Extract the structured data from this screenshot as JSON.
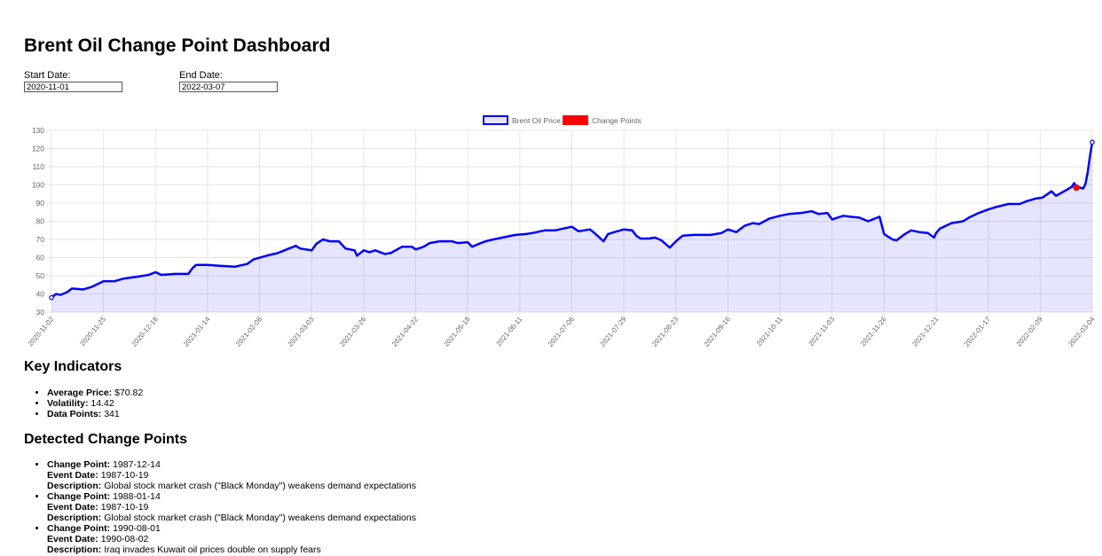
{
  "page": {
    "title": "Brent Oil Change Point Dashboard"
  },
  "filters": {
    "start_label": "Start Date:",
    "start_value": "2020-11-01",
    "end_label": "End Date:",
    "end_value": "2022-03-07"
  },
  "chart_data": {
    "type": "line",
    "title": "",
    "xlabel": "",
    "ylabel": "",
    "ylim": [
      30,
      130
    ],
    "yticks": [
      30,
      40,
      50,
      60,
      70,
      80,
      90,
      100,
      110,
      120,
      130
    ],
    "xticks": [
      "2020-11-02",
      "2020-11-25",
      "2020-12-18",
      "2021-01-14",
      "2021-02-08",
      "2021-03-03",
      "2021-03-26",
      "2021-04-22",
      "2021-05-18",
      "2021-06-11",
      "2021-07-06",
      "2021-07-29",
      "2021-08-23",
      "2021-09-16",
      "2021-10-11",
      "2021-11-03",
      "2021-11-26",
      "2021-12-21",
      "2022-01-17",
      "2022-02-09",
      "2022-03-04"
    ],
    "grid": true,
    "legend_position": "top-center",
    "series": [
      {
        "name": "Brent Oil Price",
        "color": "#0000ff",
        "fill": "rgba(0,0,255,0.1)",
        "points": [
          [
            "2020-11-02",
            38
          ],
          [
            "2020-11-04",
            40
          ],
          [
            "2020-11-06",
            39.5
          ],
          [
            "2020-11-09",
            41
          ],
          [
            "2020-11-11",
            43
          ],
          [
            "2020-11-16",
            42.5
          ],
          [
            "2020-11-20",
            44
          ],
          [
            "2020-11-25",
            47
          ],
          [
            "2020-11-30",
            47
          ],
          [
            "2020-12-04",
            48.5
          ],
          [
            "2020-12-10",
            49.5
          ],
          [
            "2020-12-15",
            50.5
          ],
          [
            "2020-12-18",
            52
          ],
          [
            "2020-12-21",
            50.5
          ],
          [
            "2020-12-28",
            51
          ],
          [
            "2021-01-04",
            51
          ],
          [
            "2021-01-06",
            54
          ],
          [
            "2021-01-08",
            56
          ],
          [
            "2021-01-14",
            56
          ],
          [
            "2021-01-20",
            55.5
          ],
          [
            "2021-01-27",
            55
          ],
          [
            "2021-02-02",
            56.5
          ],
          [
            "2021-02-05",
            59
          ],
          [
            "2021-02-11",
            61
          ],
          [
            "2021-02-16",
            62.5
          ],
          [
            "2021-02-19",
            64
          ],
          [
            "2021-02-24",
            66.5
          ],
          [
            "2021-02-26",
            65
          ],
          [
            "2021-03-03",
            64
          ],
          [
            "2021-03-05",
            67.5
          ],
          [
            "2021-03-08",
            70
          ],
          [
            "2021-03-11",
            69
          ],
          [
            "2021-03-15",
            69
          ],
          [
            "2021-03-18",
            65
          ],
          [
            "2021-03-22",
            64
          ],
          [
            "2021-03-23",
            61
          ],
          [
            "2021-03-26",
            64
          ],
          [
            "2021-03-29",
            63
          ],
          [
            "2021-04-01",
            64
          ],
          [
            "2021-04-06",
            62
          ],
          [
            "2021-04-09",
            62.5
          ],
          [
            "2021-04-15",
            66
          ],
          [
            "2021-04-20",
            66
          ],
          [
            "2021-04-22",
            64.5
          ],
          [
            "2021-04-26",
            66
          ],
          [
            "2021-04-29",
            68
          ],
          [
            "2021-05-04",
            69
          ],
          [
            "2021-05-10",
            69
          ],
          [
            "2021-05-13",
            68
          ],
          [
            "2021-05-18",
            68.5
          ],
          [
            "2021-05-20",
            66
          ],
          [
            "2021-05-25",
            68.5
          ],
          [
            "2021-05-28",
            69.5
          ],
          [
            "2021-06-03",
            71
          ],
          [
            "2021-06-09",
            72.5
          ],
          [
            "2021-06-14",
            73
          ],
          [
            "2021-06-17",
            73.5
          ],
          [
            "2021-06-23",
            75
          ],
          [
            "2021-06-28",
            75
          ],
          [
            "2021-07-02",
            76
          ],
          [
            "2021-07-06",
            77
          ],
          [
            "2021-07-09",
            74.5
          ],
          [
            "2021-07-14",
            75.5
          ],
          [
            "2021-07-16",
            73.5
          ],
          [
            "2021-07-20",
            69
          ],
          [
            "2021-07-22",
            73
          ],
          [
            "2021-07-26",
            74.5
          ],
          [
            "2021-07-29",
            75.5
          ],
          [
            "2021-08-02",
            75
          ],
          [
            "2021-08-04",
            72
          ],
          [
            "2021-08-06",
            70.5
          ],
          [
            "2021-08-10",
            70.5
          ],
          [
            "2021-08-13",
            71
          ],
          [
            "2021-08-16",
            69.5
          ],
          [
            "2021-08-18",
            67.5
          ],
          [
            "2021-08-20",
            65.5
          ],
          [
            "2021-08-23",
            69
          ],
          [
            "2021-08-26",
            72
          ],
          [
            "2021-08-31",
            72.5
          ],
          [
            "2021-09-03",
            72.5
          ],
          [
            "2021-09-08",
            72.5
          ],
          [
            "2021-09-13",
            73.5
          ],
          [
            "2021-09-16",
            75.5
          ],
          [
            "2021-09-20",
            74
          ],
          [
            "2021-09-24",
            77.5
          ],
          [
            "2021-09-28",
            79
          ],
          [
            "2021-10-01",
            78.5
          ],
          [
            "2021-10-06",
            81.5
          ],
          [
            "2021-10-11",
            83
          ],
          [
            "2021-10-15",
            84
          ],
          [
            "2021-10-20",
            84.5
          ],
          [
            "2021-10-25",
            85.5
          ],
          [
            "2021-10-28",
            84
          ],
          [
            "2021-11-01",
            84.5
          ],
          [
            "2021-11-03",
            81
          ],
          [
            "2021-11-08",
            83
          ],
          [
            "2021-11-11",
            82.5
          ],
          [
            "2021-11-15",
            82
          ],
          [
            "2021-11-19",
            80
          ],
          [
            "2021-11-24",
            82.5
          ],
          [
            "2021-11-26",
            73
          ],
          [
            "2021-11-30",
            70
          ],
          [
            "2021-12-02",
            69.5
          ],
          [
            "2021-12-06",
            73
          ],
          [
            "2021-12-09",
            75
          ],
          [
            "2021-12-13",
            74
          ],
          [
            "2021-12-17",
            73.5
          ],
          [
            "2021-12-20",
            71
          ],
          [
            "2021-12-21",
            73.5
          ],
          [
            "2021-12-23",
            76
          ],
          [
            "2021-12-29",
            79
          ],
          [
            "2022-01-04",
            80
          ],
          [
            "2022-01-07",
            82
          ],
          [
            "2022-01-12",
            84.5
          ],
          [
            "2022-01-17",
            86.5
          ],
          [
            "2022-01-21",
            88
          ],
          [
            "2022-01-26",
            89.5
          ],
          [
            "2022-01-31",
            89.5
          ],
          [
            "2022-02-03",
            91
          ],
          [
            "2022-02-07",
            92.5
          ],
          [
            "2022-02-10",
            93
          ],
          [
            "2022-02-14",
            96.5
          ],
          [
            "2022-02-16",
            94
          ],
          [
            "2022-02-21",
            97.5
          ],
          [
            "2022-02-23",
            99
          ],
          [
            "2022-02-24",
            101
          ],
          [
            "2022-02-25",
            99
          ],
          [
            "2022-02-28",
            98
          ],
          [
            "2022-03-01",
            100.5
          ],
          [
            "2022-03-02",
            107
          ],
          [
            "2022-03-03",
            116
          ],
          [
            "2022-03-04",
            123.5
          ]
        ]
      },
      {
        "name": "Change Points",
        "color": "#ff0000",
        "points": [
          [
            "2022-02-25",
            98.5
          ]
        ]
      }
    ]
  },
  "indicators": {
    "heading": "Key Indicators",
    "avg_label": "Average Price:",
    "avg_value": "$70.82",
    "vol_label": "Volatility:",
    "vol_value": "14.42",
    "dp_label": "Data Points:",
    "dp_value": "341"
  },
  "change_points": {
    "heading": "Detected Change Points",
    "cp_label": "Change Point:",
    "event_label": "Event Date:",
    "desc_label": "Description:",
    "items": [
      {
        "change_point": "1987-12-14",
        "event_date": "1987-10-19",
        "description": "Global stock market crash (\"Black Monday\") weakens demand expectations"
      },
      {
        "change_point": "1988-01-14",
        "event_date": "1987-10-19",
        "description": "Global stock market crash (\"Black Monday\") weakens demand expectations"
      },
      {
        "change_point": "1990-08-01",
        "event_date": "1990-08-02",
        "description": "Iraq invades Kuwait oil prices double on supply fears"
      }
    ]
  }
}
